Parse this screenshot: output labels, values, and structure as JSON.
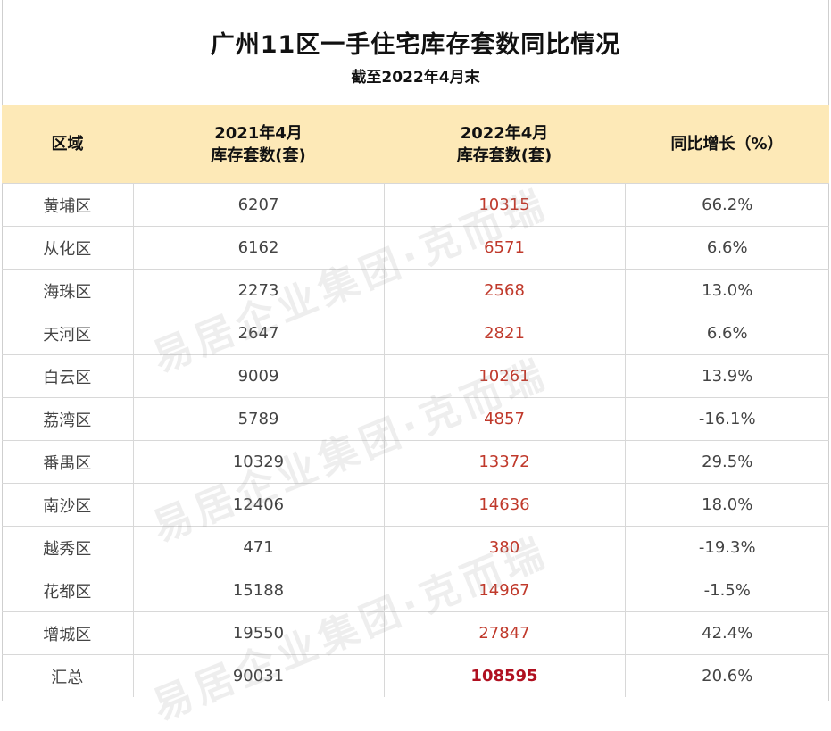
{
  "title": "广州11区一手住宅库存套数同比情况",
  "subtitle": "截至2022年4月末",
  "headers": {
    "region": "区域",
    "col2_line1": "2021年4月",
    "col2_line2": "库存套数(套)",
    "col3_line1": "2022年4月",
    "col3_line2": "库存套数(套)",
    "change": "同比增长（%）"
  },
  "rows": [
    {
      "region": "黄埔区",
      "y2021": "6207",
      "y2022": "10315",
      "change": "66.2%"
    },
    {
      "region": "从化区",
      "y2021": "6162",
      "y2022": "6571",
      "change": "6.6%"
    },
    {
      "region": "海珠区",
      "y2021": "2273",
      "y2022": "2568",
      "change": "13.0%"
    },
    {
      "region": "天河区",
      "y2021": "2647",
      "y2022": "2821",
      "change": "6.6%"
    },
    {
      "region": "白云区",
      "y2021": "9009",
      "y2022": "10261",
      "change": "13.9%"
    },
    {
      "region": "荔湾区",
      "y2021": "5789",
      "y2022": "4857",
      "change": "-16.1%"
    },
    {
      "region": "番禺区",
      "y2021": "10329",
      "y2022": "13372",
      "change": "29.5%"
    },
    {
      "region": "南沙区",
      "y2021": "12406",
      "y2022": "14636",
      "change": "18.0%"
    },
    {
      "region": "越秀区",
      "y2021": "471",
      "y2022": "380",
      "change": "-19.3%"
    },
    {
      "region": "花都区",
      "y2021": "15188",
      "y2022": "14967",
      "change": "-1.5%"
    },
    {
      "region": "增城区",
      "y2021": "19550",
      "y2022": "27847",
      "change": "42.4%"
    }
  ],
  "total": {
    "region": "汇总",
    "y2021": "90031",
    "y2022": "108595",
    "change": "20.6%"
  },
  "watermark": "易居企业集团·克而瑞",
  "colors": {
    "header_bg": "#fde9b7",
    "value_red": "#c0392b"
  }
}
